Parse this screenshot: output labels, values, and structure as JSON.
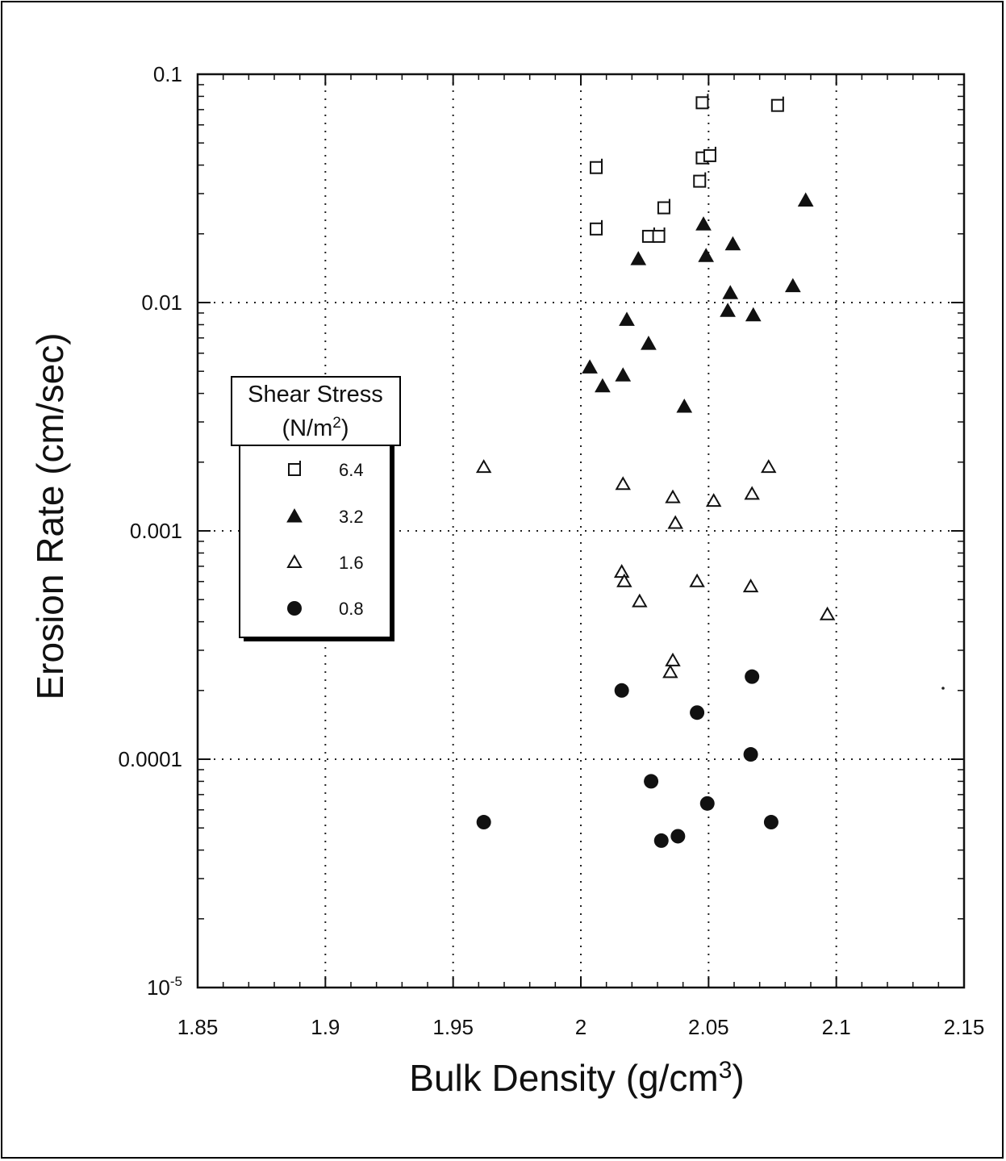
{
  "chart_data": {
    "type": "scatter",
    "title": "",
    "xlabel": "Bulk Density (g/cm",
    "xlabel_sup": "3",
    "xlabel_close": ")",
    "ylabel": "Erosion Rate (cm/sec)",
    "xlim": [
      1.85,
      2.15
    ],
    "ylim": [
      1e-05,
      0.1
    ],
    "yscale": "log",
    "grid": "dotted at major ticks",
    "x_ticks": [
      {
        "v": 1.85,
        "label": "1.85"
      },
      {
        "v": 1.9,
        "label": "1.9"
      },
      {
        "v": 1.95,
        "label": "1.95"
      },
      {
        "v": 2.0,
        "label": "2"
      },
      {
        "v": 2.05,
        "label": "2.05"
      },
      {
        "v": 2.1,
        "label": "2.1"
      },
      {
        "v": 2.15,
        "label": "2.15"
      }
    ],
    "y_ticks": [
      {
        "v": 0.1,
        "label": "0.1"
      },
      {
        "v": 0.01,
        "label": "0.01"
      },
      {
        "v": 0.001,
        "label": "0.001"
      },
      {
        "v": 0.0001,
        "label": "0.0001"
      },
      {
        "v": 1e-05,
        "label_base": "10",
        "label_sup": "-5"
      }
    ],
    "legend": {
      "title_line1": "Shear Stress",
      "title_line2_pre": "(N/m",
      "title_line2_sup": "2",
      "title_line2_post": ")",
      "placement": "center-left"
    },
    "series": [
      {
        "name": "6.4",
        "marker": "open-square",
        "points": [
          [
            2.0475,
            0.075
          ],
          [
            2.077,
            0.073
          ],
          [
            2.006,
            0.039
          ],
          [
            2.0475,
            0.043
          ],
          [
            2.0505,
            0.044
          ],
          [
            2.0465,
            0.034
          ],
          [
            2.0325,
            0.026
          ],
          [
            2.006,
            0.021
          ],
          [
            2.0265,
            0.0195
          ],
          [
            2.0305,
            0.0195
          ]
        ]
      },
      {
        "name": "3.2",
        "marker": "filled-triangle",
        "points": [
          [
            2.088,
            0.028
          ],
          [
            2.048,
            0.022
          ],
          [
            2.0595,
            0.018
          ],
          [
            2.0225,
            0.0155
          ],
          [
            2.049,
            0.016
          ],
          [
            2.083,
            0.0118
          ],
          [
            2.0585,
            0.011
          ],
          [
            2.0575,
            0.0092
          ],
          [
            2.0675,
            0.0088
          ],
          [
            2.018,
            0.0084
          ],
          [
            2.0265,
            0.0066
          ],
          [
            2.0035,
            0.0052
          ],
          [
            2.0165,
            0.0048
          ],
          [
            2.0085,
            0.0043
          ],
          [
            2.0405,
            0.0035
          ]
        ]
      },
      {
        "name": "1.6",
        "marker": "open-triangle",
        "points": [
          [
            1.962,
            0.0019
          ],
          [
            2.0735,
            0.0019
          ],
          [
            2.0165,
            0.0016
          ],
          [
            2.036,
            0.0014
          ],
          [
            2.067,
            0.00145
          ],
          [
            2.052,
            0.00135
          ],
          [
            2.037,
            0.00108
          ],
          [
            2.016,
            0.00066
          ],
          [
            2.017,
            0.0006
          ],
          [
            2.0455,
            0.0006
          ],
          [
            2.0665,
            0.00057
          ],
          [
            2.023,
            0.00049
          ],
          [
            2.0965,
            0.00043
          ],
          [
            2.036,
            0.00027
          ],
          [
            2.035,
            0.00024
          ]
        ]
      },
      {
        "name": "0.8",
        "marker": "filled-circle",
        "points": [
          [
            2.067,
            0.00023
          ],
          [
            2.016,
            0.0002
          ],
          [
            2.0455,
            0.00016
          ],
          [
            2.0665,
            0.000105
          ],
          [
            2.0275,
            8e-05
          ],
          [
            2.0495,
            6.4e-05
          ],
          [
            1.962,
            5.3e-05
          ],
          [
            2.0745,
            5.3e-05
          ],
          [
            2.038,
            4.6e-05
          ],
          [
            2.0315,
            4.4e-05
          ]
        ]
      }
    ]
  }
}
